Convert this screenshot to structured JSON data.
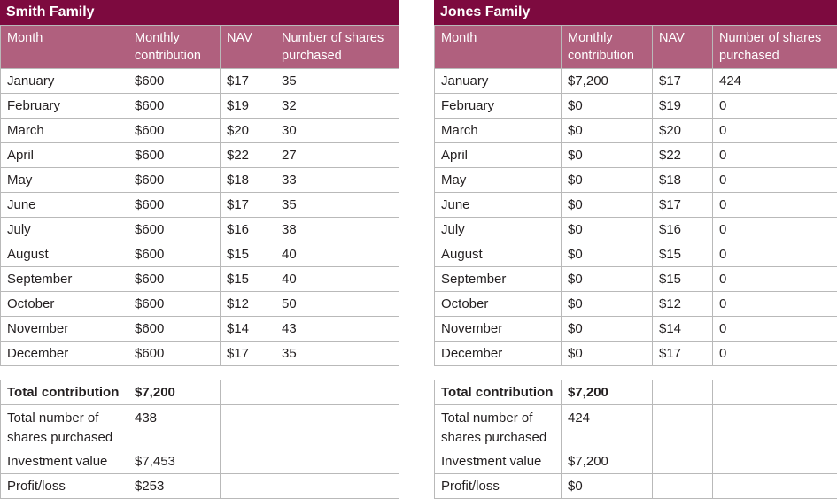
{
  "headers": [
    "Month",
    "Monthly contribution",
    "NAV",
    "Number of shares purchased"
  ],
  "families": [
    {
      "title": "Smith Family",
      "rows": [
        [
          "January",
          "$600",
          "$17",
          "35"
        ],
        [
          "February",
          "$600",
          "$19",
          "32"
        ],
        [
          "March",
          "$600",
          "$20",
          "30"
        ],
        [
          "April",
          "$600",
          "$22",
          "27"
        ],
        [
          "May",
          "$600",
          "$18",
          "33"
        ],
        [
          "June",
          "$600",
          "$17",
          "35"
        ],
        [
          "July",
          "$600",
          "$16",
          "38"
        ],
        [
          "August",
          "$600",
          "$15",
          "40"
        ],
        [
          "September",
          "$600",
          "$15",
          "40"
        ],
        [
          "October",
          "$600",
          "$12",
          "50"
        ],
        [
          "November",
          "$600",
          "$14",
          "43"
        ],
        [
          "December",
          "$600",
          "$17",
          "35"
        ]
      ],
      "summary": [
        {
          "label": "Total contribution",
          "value": "$7,200"
        },
        {
          "label": "Total number of shares purchased",
          "value": "438"
        },
        {
          "label": "Investment value",
          "value": "$7,453"
        },
        {
          "label": "Profit/loss",
          "value": "$253"
        }
      ]
    },
    {
      "title": "Jones Family",
      "rows": [
        [
          "January",
          "$7,200",
          "$17",
          "424"
        ],
        [
          "February",
          "$0",
          "$19",
          "0"
        ],
        [
          "March",
          "$0",
          "$20",
          "0"
        ],
        [
          "April",
          "$0",
          "$22",
          "0"
        ],
        [
          "May",
          "$0",
          "$18",
          "0"
        ],
        [
          "June",
          "$0",
          "$17",
          "0"
        ],
        [
          "July",
          "$0",
          "$16",
          "0"
        ],
        [
          "August",
          "$0",
          "$15",
          "0"
        ],
        [
          "September",
          "$0",
          "$15",
          "0"
        ],
        [
          "October",
          "$0",
          "$12",
          "0"
        ],
        [
          "November",
          "$0",
          "$14",
          "0"
        ],
        [
          "December",
          "$0",
          "$17",
          "0"
        ]
      ],
      "summary": [
        {
          "label": "Total contribution",
          "value": "$7,200"
        },
        {
          "label": "Total number of shares purchased",
          "value": "424"
        },
        {
          "label": "Investment value",
          "value": "$7,200"
        },
        {
          "label": "Profit/loss",
          "value": "$0"
        }
      ]
    }
  ],
  "colors": {
    "title_bg": "#7d0a3f",
    "header_bg": "#b0607e",
    "border": "#b9b9b9"
  }
}
